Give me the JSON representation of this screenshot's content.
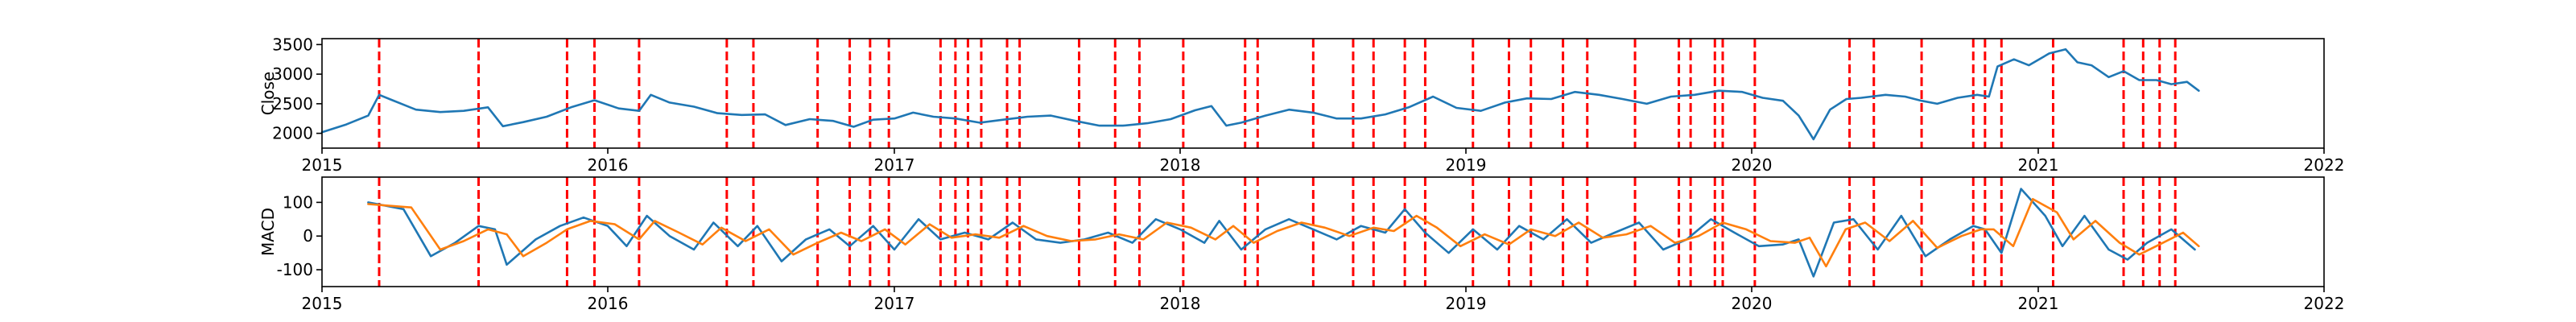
{
  "chart_data": [
    {
      "type": "line",
      "ylabel": "Close",
      "xlim": [
        "2015-01-01",
        "2022-01-01"
      ],
      "ylim": [
        1750,
        3600
      ],
      "x_ticks": [
        "2015",
        "2016",
        "2017",
        "2018",
        "2019",
        "2020",
        "2021",
        "2022"
      ],
      "y_ticks": [
        2000,
        2500,
        3000,
        3500
      ],
      "grid": false,
      "event_lines": {
        "color": "#ff0000",
        "style": "dashed"
      },
      "series": [
        {
          "color": "#1f77b4",
          "x": [
            "2015-01-01",
            "2015-02-01",
            "2015-03-01",
            "2015-03-15",
            "2015-04-01",
            "2015-05-01",
            "2015-06-01",
            "2015-07-01",
            "2015-08-01",
            "2015-08-20",
            "2015-09-15",
            "2015-10-15",
            "2015-11-15",
            "2015-12-15",
            "2016-01-15",
            "2016-02-10",
            "2016-02-25",
            "2016-03-20",
            "2016-04-20",
            "2016-05-20",
            "2016-06-20",
            "2016-07-20",
            "2016-08-15",
            "2016-09-15",
            "2016-10-15",
            "2016-11-10",
            "2016-12-05",
            "2017-01-01",
            "2017-01-25",
            "2017-02-20",
            "2017-03-20",
            "2017-04-20",
            "2017-05-20",
            "2017-06-20",
            "2017-07-20",
            "2017-08-20",
            "2017-09-20",
            "2017-10-20",
            "2017-11-20",
            "2017-12-20",
            "2018-01-20",
            "2018-02-10",
            "2018-03-01",
            "2018-03-20",
            "2018-04-20",
            "2018-05-20",
            "2018-06-20",
            "2018-07-20",
            "2018-08-20",
            "2018-09-20",
            "2018-10-20",
            "2018-11-20",
            "2018-12-20",
            "2019-01-20",
            "2019-02-20",
            "2019-03-20",
            "2019-04-20",
            "2019-05-20",
            "2019-06-20",
            "2019-07-20",
            "2019-08-20",
            "2019-09-20",
            "2019-10-20",
            "2019-11-20",
            "2019-12-20",
            "2020-01-15",
            "2020-02-10",
            "2020-03-01",
            "2020-03-20",
            "2020-04-10",
            "2020-05-01",
            "2020-05-20",
            "2020-06-20",
            "2020-07-15",
            "2020-08-05",
            "2020-08-25",
            "2020-09-20",
            "2020-10-15",
            "2020-10-30",
            "2020-11-10",
            "2020-12-01",
            "2020-12-20",
            "2021-01-15",
            "2021-02-05",
            "2021-02-20",
            "2021-03-10",
            "2021-04-01",
            "2021-04-20",
            "2021-05-10",
            "2021-06-01",
            "2021-06-20",
            "2021-07-10",
            "2021-07-25"
          ],
          "values": [
            2020,
            2150,
            2300,
            2650,
            2560,
            2400,
            2360,
            2380,
            2440,
            2120,
            2190,
            2280,
            2440,
            2560,
            2420,
            2380,
            2650,
            2520,
            2450,
            2340,
            2310,
            2320,
            2140,
            2240,
            2210,
            2110,
            2230,
            2250,
            2350,
            2280,
            2250,
            2180,
            2230,
            2280,
            2300,
            2210,
            2130,
            2130,
            2170,
            2240,
            2390,
            2460,
            2130,
            2180,
            2300,
            2400,
            2350,
            2250,
            2250,
            2320,
            2440,
            2620,
            2430,
            2380,
            2520,
            2590,
            2580,
            2700,
            2650,
            2580,
            2500,
            2620,
            2650,
            2720,
            2700,
            2600,
            2550,
            2300,
            1900,
            2400,
            2580,
            2600,
            2650,
            2620,
            2550,
            2500,
            2600,
            2650,
            2620,
            3130,
            3250,
            3150,
            3350,
            3420,
            3200,
            3150,
            2950,
            3050,
            2900,
            2900,
            2830,
            2870,
            2720
          ]
        }
      ]
    },
    {
      "type": "line",
      "ylabel": "MACD",
      "xlim": [
        "2015-01-01",
        "2022-01-01"
      ],
      "ylim": [
        -150,
        175
      ],
      "x_ticks": [
        "2015",
        "2016",
        "2017",
        "2018",
        "2019",
        "2020",
        "2021",
        "2022"
      ],
      "y_ticks": [
        -100,
        0,
        100
      ],
      "grid": false,
      "event_lines": {
        "color": "#ff0000",
        "style": "dashed"
      },
      "series": [
        {
          "color": "#1f77b4",
          "x": [
            "2015-03-01",
            "2015-04-15",
            "2015-05-20",
            "2015-06-20",
            "2015-07-20",
            "2015-08-10",
            "2015-08-25",
            "2015-10-01",
            "2015-11-01",
            "2015-12-01",
            "2016-01-01",
            "2016-01-25",
            "2016-02-20",
            "2016-03-20",
            "2016-04-20",
            "2016-05-15",
            "2016-06-15",
            "2016-07-10",
            "2016-08-10",
            "2016-09-10",
            "2016-10-10",
            "2016-11-05",
            "2016-12-05",
            "2017-01-01",
            "2017-02-01",
            "2017-03-01",
            "2017-04-01",
            "2017-05-01",
            "2017-06-01",
            "2017-07-01",
            "2017-08-01",
            "2017-09-01",
            "2017-10-01",
            "2017-11-01",
            "2017-12-01",
            "2018-01-01",
            "2018-02-01",
            "2018-02-20",
            "2018-03-20",
            "2018-04-20",
            "2018-05-20",
            "2018-06-20",
            "2018-07-20",
            "2018-08-20",
            "2018-09-20",
            "2018-10-15",
            "2018-11-10",
            "2018-12-10",
            "2019-01-10",
            "2019-02-10",
            "2019-03-10",
            "2019-04-10",
            "2019-05-10",
            "2019-06-10",
            "2019-07-10",
            "2019-08-10",
            "2019-09-10",
            "2019-10-10",
            "2019-11-10",
            "2019-12-10",
            "2020-01-10",
            "2020-02-10",
            "2020-03-01",
            "2020-03-20",
            "2020-04-15",
            "2020-05-10",
            "2020-06-10",
            "2020-07-10",
            "2020-08-10",
            "2020-09-10",
            "2020-10-10",
            "2020-10-25",
            "2020-11-15",
            "2020-12-10",
            "2021-01-10",
            "2021-02-01",
            "2021-03-01",
            "2021-04-01",
            "2021-04-25",
            "2021-05-20",
            "2021-06-20",
            "2021-07-20"
          ],
          "values": [
            100,
            80,
            -60,
            -20,
            30,
            20,
            -85,
            -10,
            30,
            55,
            30,
            -30,
            60,
            0,
            -40,
            40,
            -30,
            30,
            -75,
            -10,
            20,
            -30,
            30,
            -40,
            50,
            -10,
            10,
            -10,
            40,
            -10,
            -20,
            -10,
            10,
            -20,
            50,
            20,
            -20,
            45,
            -40,
            20,
            50,
            20,
            -10,
            30,
            10,
            80,
            10,
            -50,
            20,
            -40,
            30,
            -10,
            50,
            -20,
            10,
            40,
            -40,
            -10,
            50,
            10,
            -30,
            -25,
            -10,
            -120,
            40,
            50,
            -40,
            60,
            -60,
            -10,
            30,
            20,
            -50,
            140,
            60,
            -30,
            60,
            -40,
            -70,
            -20,
            20,
            -40
          ]
        },
        {
          "color": "#ff7f0e",
          "x": [
            "2015-03-01",
            "2015-04-25",
            "2015-06-01",
            "2015-07-01",
            "2015-08-01",
            "2015-08-25",
            "2015-09-15",
            "2015-10-15",
            "2015-11-10",
            "2015-12-10",
            "2016-01-10",
            "2016-02-10",
            "2016-03-01",
            "2016-04-01",
            "2016-05-01",
            "2016-05-25",
            "2016-06-25",
            "2016-07-25",
            "2016-08-25",
            "2016-09-25",
            "2016-10-25",
            "2016-11-20",
            "2016-12-20",
            "2017-01-15",
            "2017-02-15",
            "2017-03-15",
            "2017-04-15",
            "2017-05-15",
            "2017-06-15",
            "2017-07-15",
            "2017-08-15",
            "2017-09-15",
            "2017-10-15",
            "2017-11-15",
            "2017-12-15",
            "2018-01-15",
            "2018-02-15",
            "2018-03-10",
            "2018-04-05",
            "2018-05-05",
            "2018-06-05",
            "2018-07-05",
            "2018-08-05",
            "2018-09-05",
            "2018-10-01",
            "2018-10-30",
            "2018-11-25",
            "2018-12-25",
            "2019-01-25",
            "2019-02-25",
            "2019-03-25",
            "2019-04-25",
            "2019-05-25",
            "2019-06-25",
            "2019-07-25",
            "2019-08-25",
            "2019-09-25",
            "2019-10-25",
            "2019-11-25",
            "2019-12-25",
            "2020-01-25",
            "2020-02-25",
            "2020-03-15",
            "2020-04-05",
            "2020-04-30",
            "2020-05-25",
            "2020-06-25",
            "2020-07-25",
            "2020-08-25",
            "2020-09-25",
            "2020-10-20",
            "2020-11-05",
            "2020-11-30",
            "2020-12-25",
            "2021-01-25",
            "2021-02-15",
            "2021-03-15",
            "2021-04-15",
            "2021-05-10",
            "2021-06-05",
            "2021-07-05",
            "2021-07-25"
          ],
          "values": [
            95,
            85,
            -40,
            -15,
            20,
            5,
            -60,
            -20,
            20,
            45,
            35,
            -10,
            45,
            10,
            -25,
            25,
            -15,
            20,
            -55,
            -20,
            10,
            -15,
            20,
            -25,
            35,
            -5,
            5,
            -5,
            30,
            0,
            -15,
            -10,
            5,
            -10,
            40,
            25,
            -10,
            30,
            -20,
            15,
            40,
            25,
            0,
            25,
            15,
            60,
            25,
            -30,
            5,
            -25,
            20,
            0,
            40,
            -5,
            5,
            30,
            -20,
            0,
            40,
            20,
            -15,
            -20,
            -5,
            -90,
            20,
            40,
            -15,
            45,
            -35,
            0,
            20,
            20,
            -30,
            110,
            70,
            -10,
            45,
            -20,
            -55,
            -25,
            10,
            -30
          ]
        }
      ]
    }
  ]
}
